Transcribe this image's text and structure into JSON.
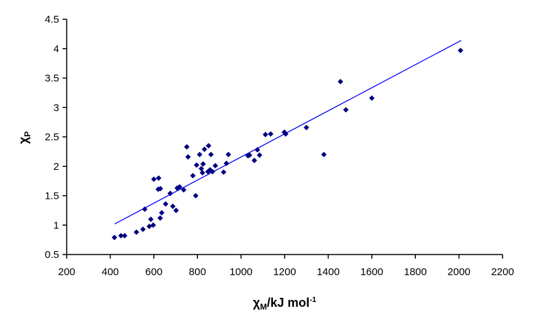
{
  "chart_data": {
    "type": "scatter",
    "title": "",
    "xlabel": "χM/kJ mol⁻¹",
    "xlabel_parts": {
      "symbol": "χ",
      "sub": "M",
      "rest": "/kJ mol",
      "sup": "-1"
    },
    "ylabel": "χP",
    "ylabel_parts": {
      "symbol": "χ",
      "sub": "P"
    },
    "xlim": [
      200,
      2200
    ],
    "ylim": [
      0.5,
      4.5
    ],
    "xticks": [
      200,
      400,
      600,
      800,
      1000,
      1200,
      1400,
      1600,
      1800,
      2000,
      2200
    ],
    "yticks": [
      0.5,
      1,
      1.5,
      2,
      2.5,
      3,
      3.5,
      4,
      4.5
    ],
    "ytick_labels": [
      "0.5",
      "1",
      "1.5",
      "2",
      "2.5",
      "3",
      "3.5",
      "4",
      "4.5"
    ],
    "grid": false,
    "legend": null,
    "marker_color": "#000080",
    "trendline_color": "#0000ff",
    "trendline": {
      "x": [
        420,
        2010
      ],
      "y": [
        1.02,
        4.14
      ]
    },
    "points": [
      {
        "x": 419,
        "y": 0.79
      },
      {
        "x": 449,
        "y": 0.82
      },
      {
        "x": 466,
        "y": 0.82
      },
      {
        "x": 520,
        "y": 0.88
      },
      {
        "x": 550,
        "y": 0.93
      },
      {
        "x": 558,
        "y": 1.27
      },
      {
        "x": 579,
        "y": 0.98
      },
      {
        "x": 586,
        "y": 1.1
      },
      {
        "x": 597,
        "y": 1.0
      },
      {
        "x": 600,
        "y": 1.78
      },
      {
        "x": 622,
        "y": 1.8
      },
      {
        "x": 620,
        "y": 1.61
      },
      {
        "x": 630,
        "y": 1.62
      },
      {
        "x": 629,
        "y": 1.12
      },
      {
        "x": 636,
        "y": 1.21
      },
      {
        "x": 654,
        "y": 1.36
      },
      {
        "x": 675,
        "y": 1.54
      },
      {
        "x": 687,
        "y": 1.32
      },
      {
        "x": 702,
        "y": 1.25
      },
      {
        "x": 707,
        "y": 1.63
      },
      {
        "x": 718,
        "y": 1.65
      },
      {
        "x": 737,
        "y": 1.6
      },
      {
        "x": 751,
        "y": 2.33
      },
      {
        "x": 757,
        "y": 2.16
      },
      {
        "x": 779,
        "y": 1.84
      },
      {
        "x": 792,
        "y": 1.5
      },
      {
        "x": 796,
        "y": 2.02
      },
      {
        "x": 810,
        "y": 2.2
      },
      {
        "x": 818,
        "y": 1.96
      },
      {
        "x": 823,
        "y": 1.89
      },
      {
        "x": 826,
        "y": 2.04
      },
      {
        "x": 832,
        "y": 2.29
      },
      {
        "x": 848,
        "y": 1.91
      },
      {
        "x": 851,
        "y": 2.35
      },
      {
        "x": 858,
        "y": 1.94
      },
      {
        "x": 862,
        "y": 2.2
      },
      {
        "x": 869,
        "y": 1.91
      },
      {
        "x": 882,
        "y": 2.01
      },
      {
        "x": 920,
        "y": 1.9
      },
      {
        "x": 933,
        "y": 2.05
      },
      {
        "x": 942,
        "y": 2.2
      },
      {
        "x": 1032,
        "y": 2.18
      },
      {
        "x": 1039,
        "y": 2.19
      },
      {
        "x": 1061,
        "y": 2.1
      },
      {
        "x": 1075,
        "y": 2.28
      },
      {
        "x": 1085,
        "y": 2.19
      },
      {
        "x": 1112,
        "y": 2.54
      },
      {
        "x": 1136,
        "y": 2.55
      },
      {
        "x": 1199,
        "y": 2.58
      },
      {
        "x": 1205,
        "y": 2.55
      },
      {
        "x": 1300,
        "y": 2.66
      },
      {
        "x": 1380,
        "y": 2.2
      },
      {
        "x": 1456,
        "y": 3.44
      },
      {
        "x": 1481,
        "y": 2.96
      },
      {
        "x": 1600,
        "y": 3.16
      },
      {
        "x": 2007,
        "y": 3.97
      }
    ]
  }
}
